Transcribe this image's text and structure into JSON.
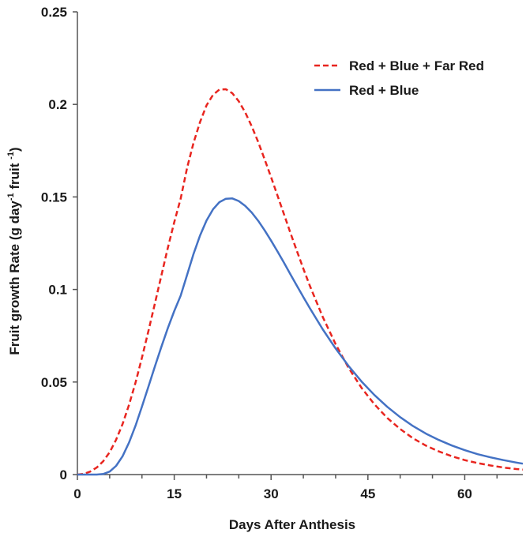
{
  "chart_data": {
    "type": "line",
    "title": "",
    "xlabel": "Days After Anthesis",
    "ylabel": {
      "part1": "Fruit growth Rate (g day",
      "sup1": "-1",
      "part2": " fruit ",
      "sup2": "-1",
      "part3": ")"
    },
    "xlim": [
      0,
      69
    ],
    "ylim": [
      0,
      0.25
    ],
    "xticks": [
      0,
      15,
      30,
      45,
      60
    ],
    "xtick_labels": [
      "0",
      "15",
      "30",
      "45",
      "60"
    ],
    "yticks": [
      0,
      0.05,
      0.1,
      0.15,
      0.2,
      0.25
    ],
    "ytick_labels": [
      "0",
      "0.05",
      "0.1",
      "0.15",
      "0.2",
      "0.25"
    ],
    "grid": false,
    "legend_position": "top-right",
    "x": [
      0,
      1,
      2,
      3,
      4,
      5,
      6,
      7,
      8,
      9,
      10,
      11,
      12,
      13,
      14,
      15,
      16,
      17,
      18,
      19,
      20,
      21,
      22,
      23,
      24,
      25,
      26,
      27,
      28,
      29,
      30,
      31,
      32,
      33,
      34,
      35,
      36,
      38,
      40,
      42,
      44,
      46,
      48,
      50,
      52,
      54,
      56,
      58,
      60,
      62,
      64,
      66,
      68,
      69
    ],
    "series": [
      {
        "name": "Red + Blue + Far Red",
        "color": "#e8251f",
        "style": "dashed",
        "values": [
          0,
          0.0004,
          0.0016,
          0.0038,
          0.0072,
          0.0121,
          0.0188,
          0.0273,
          0.0377,
          0.0497,
          0.0631,
          0.0775,
          0.0924,
          0.1075,
          0.1223,
          0.1363,
          0.1492,
          0.1659,
          0.1793,
          0.1905,
          0.1995,
          0.2051,
          0.208,
          0.2082,
          0.206,
          0.2017,
          0.1957,
          0.1882,
          0.1797,
          0.1704,
          0.1607,
          0.1507,
          0.1406,
          0.1306,
          0.1208,
          0.1112,
          0.102,
          0.0852,
          0.0704,
          0.0577,
          0.0469,
          0.038,
          0.0306,
          0.0246,
          0.0196,
          0.0156,
          0.0125,
          0.0099,
          0.0078,
          0.0062,
          0.0049,
          0.0038,
          0.003,
          0.0027
        ]
      },
      {
        "name": "Red + Blue",
        "color": "#4472c4",
        "style": "solid",
        "values": [
          0,
          0,
          0,
          0,
          0.0003,
          0.0016,
          0.0047,
          0.0099,
          0.0173,
          0.0264,
          0.0367,
          0.0475,
          0.0584,
          0.069,
          0.079,
          0.0883,
          0.0967,
          0.108,
          0.1193,
          0.1292,
          0.1373,
          0.1433,
          0.1472,
          0.149,
          0.1492,
          0.1478,
          0.1452,
          0.1416,
          0.1371,
          0.132,
          0.1264,
          0.1205,
          0.1144,
          0.1082,
          0.102,
          0.0959,
          0.0899,
          0.0785,
          0.0681,
          0.0587,
          0.0503,
          0.043,
          0.0366,
          0.031,
          0.0262,
          0.0221,
          0.0187,
          0.0157,
          0.0132,
          0.011,
          0.0093,
          0.0078,
          0.0065,
          0.0059
        ]
      }
    ]
  }
}
